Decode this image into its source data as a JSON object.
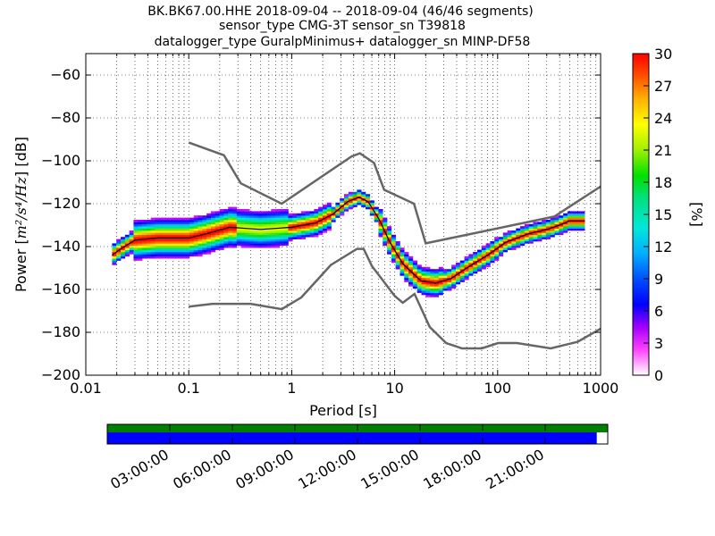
{
  "title_lines": [
    "BK.BK67.00.HHE   2018-09-04 -- 2018-09-04  (46/46 segments)",
    "sensor_type CMG-3T sensor_sn T39818",
    "datalogger_type GuralpMinimus+ datalogger_sn MINP-DF58"
  ],
  "chart_data": {
    "type": "heatmap",
    "xlabel": "Period [s]",
    "ylabel_prefix": "Power [",
    "ylabel_units": "m²/s⁴/Hz",
    "ylabel_suffix": "] [dB]",
    "x_scale": "log",
    "xlim": [
      0.01,
      1000
    ],
    "ylim": [
      -200,
      -50
    ],
    "x_ticks": [
      0.01,
      0.1,
      1,
      10,
      100,
      1000
    ],
    "x_tick_labels": [
      "0.01",
      "0.1",
      "1",
      "10",
      "100",
      "1000"
    ],
    "y_ticks": [
      -200,
      -180,
      -160,
      -140,
      -120,
      -100,
      -80,
      -60
    ],
    "y_tick_labels": [
      "−200",
      "−180",
      "−160",
      "−140",
      "−120",
      "−100",
      "−80",
      "−60"
    ],
    "grid": true,
    "colorbar": {
      "label": "[%]",
      "range": [
        0,
        30
      ],
      "ticks": [
        0,
        3,
        6,
        9,
        12,
        15,
        18,
        21,
        24,
        27,
        30
      ],
      "tick_labels": [
        "0",
        "3",
        "6",
        "9",
        "12",
        "15",
        "18",
        "21",
        "24",
        "27",
        "30"
      ]
    },
    "mode_curve": [
      [
        0.018,
        -144
      ],
      [
        0.022,
        -141
      ],
      [
        0.03,
        -137
      ],
      [
        0.05,
        -136
      ],
      [
        0.1,
        -136
      ],
      [
        0.15,
        -134
      ],
      [
        0.25,
        -131
      ],
      [
        0.5,
        -132
      ],
      [
        1.0,
        -131
      ],
      [
        1.7,
        -129
      ],
      [
        2.5,
        -125
      ],
      [
        3.5,
        -119
      ],
      [
        4.5,
        -117
      ],
      [
        5.5,
        -119
      ],
      [
        7,
        -127
      ],
      [
        9,
        -138
      ],
      [
        12,
        -148
      ],
      [
        18,
        -156
      ],
      [
        25,
        -157
      ],
      [
        35,
        -155
      ],
      [
        50,
        -150
      ],
      [
        80,
        -144
      ],
      [
        120,
        -138
      ],
      [
        200,
        -134
      ],
      [
        300,
        -132
      ],
      [
        400,
        -130
      ],
      [
        500,
        -128
      ],
      [
        700,
        -128
      ]
    ],
    "nhnm": [
      [
        0.1,
        -91.5
      ],
      [
        0.22,
        -97.4
      ],
      [
        0.32,
        -110.5
      ],
      [
        0.8,
        -120
      ],
      [
        3.8,
        -98
      ],
      [
        4.6,
        -96.5
      ],
      [
        6.3,
        -101
      ],
      [
        7.9,
        -113.5
      ],
      [
        15.4,
        -120
      ],
      [
        20,
        -138.5
      ],
      [
        354.8,
        -126
      ],
      [
        1000,
        -112
      ]
    ],
    "nlnm": [
      [
        0.1,
        -168
      ],
      [
        0.17,
        -166.7
      ],
      [
        0.4,
        -166.7
      ],
      [
        0.8,
        -169.2
      ],
      [
        1.24,
        -163.7
      ],
      [
        2.4,
        -148.6
      ],
      [
        4.3,
        -141.1
      ],
      [
        5.0,
        -141.1
      ],
      [
        6.0,
        -149
      ],
      [
        10,
        -163
      ],
      [
        12,
        -166.2
      ],
      [
        15.6,
        -162.1
      ],
      [
        21.9,
        -177.5
      ],
      [
        31.6,
        -185
      ],
      [
        45,
        -187.5
      ],
      [
        70,
        -187.5
      ],
      [
        101,
        -185
      ],
      [
        154,
        -185
      ],
      [
        328,
        -187.5
      ],
      [
        600,
        -184.4
      ],
      [
        1000,
        -178.3
      ]
    ],
    "coverage": {
      "time_ticks": [
        "03:00:00",
        "06:00:00",
        "09:00:00",
        "12:00:00",
        "15:00:00",
        "18:00:00",
        "21:00:00"
      ],
      "data_fraction": 0.978,
      "colors": {
        "data_available": "#008000",
        "used_segments": "#0000ff"
      }
    }
  }
}
